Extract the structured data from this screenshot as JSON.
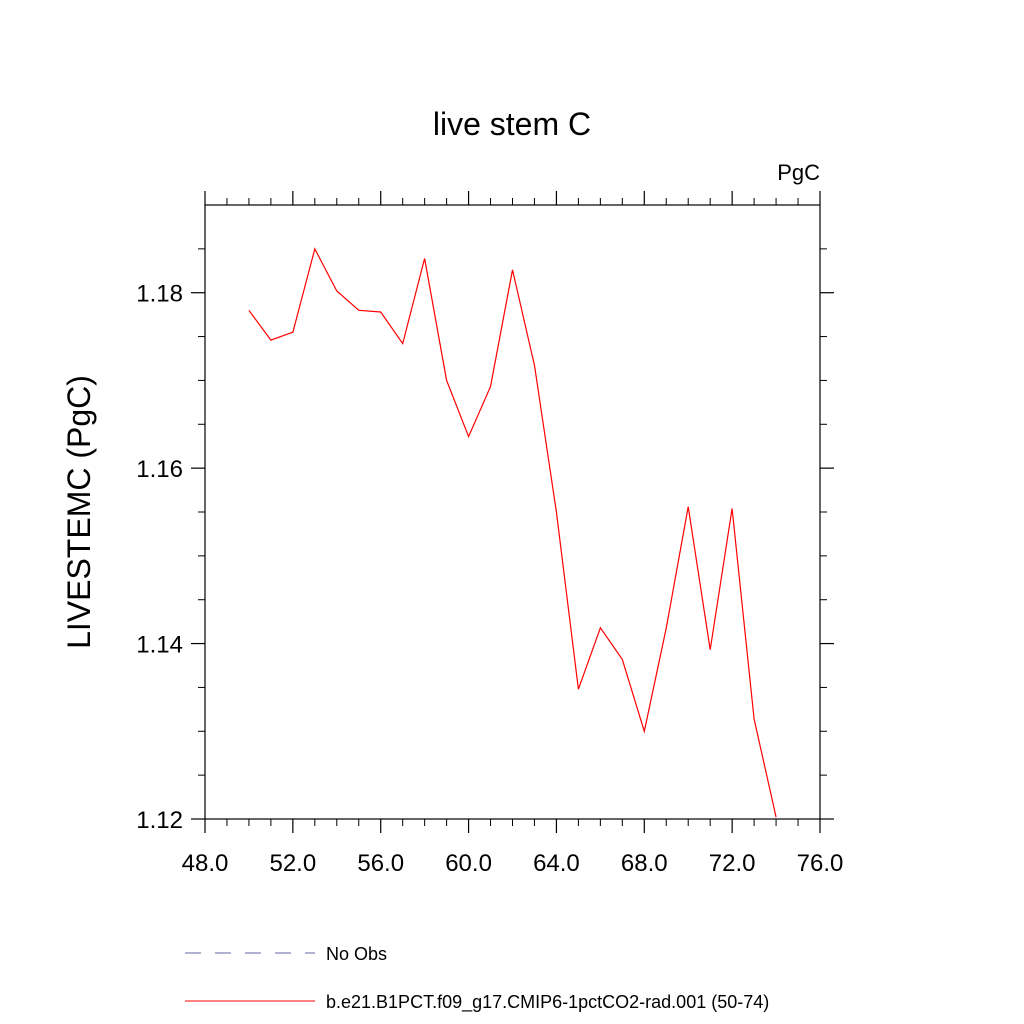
{
  "chart_data": {
    "type": "line",
    "title": "live stem C",
    "units_label": "PgC",
    "ylabel": "LIVESTEMC  (PgC)",
    "xlabel": "",
    "xlim": [
      48,
      76
    ],
    "ylim": [
      1.12,
      1.19
    ],
    "x_ticks": [
      48,
      52,
      56,
      60,
      64,
      68,
      72,
      76
    ],
    "x_tick_labels": [
      "48.0",
      "52.0",
      "56.0",
      "60.0",
      "64.0",
      "68.0",
      "72.0",
      "76.0"
    ],
    "y_ticks": [
      1.12,
      1.14,
      1.16,
      1.18
    ],
    "y_tick_labels": [
      "1.12",
      "1.14",
      "1.16",
      "1.18"
    ],
    "grid": false,
    "legend_position": "bottom",
    "series": [
      {
        "name": "b.e21.B1PCT.f09_g17.CMIP6-1pctCO2-rad.001 (50-74)",
        "color": "#ff0000",
        "style": "solid",
        "x": [
          50,
          51,
          52,
          53,
          54,
          55,
          56,
          57,
          58,
          59,
          60,
          61,
          62,
          63,
          64,
          65,
          66,
          67,
          68,
          69,
          70,
          71,
          72,
          73,
          74
        ],
        "y": [
          1.178,
          1.1746,
          1.1755,
          1.185,
          1.1802,
          1.178,
          1.1778,
          1.1742,
          1.1839,
          1.17,
          1.1636,
          1.1693,
          1.1826,
          1.1717,
          1.155,
          1.1348,
          1.1418,
          1.1382,
          1.13,
          1.1418,
          1.1556,
          1.1393,
          1.1554,
          1.1314,
          1.1202
        ]
      }
    ],
    "legend": [
      {
        "label": "No Obs",
        "color": "#6666aa",
        "style": "dashed"
      },
      {
        "label": "b.e21.B1PCT.f09_g17.CMIP6-1pctCO2-rad.001 (50-74)",
        "color": "#ff0000",
        "style": "solid"
      }
    ]
  }
}
